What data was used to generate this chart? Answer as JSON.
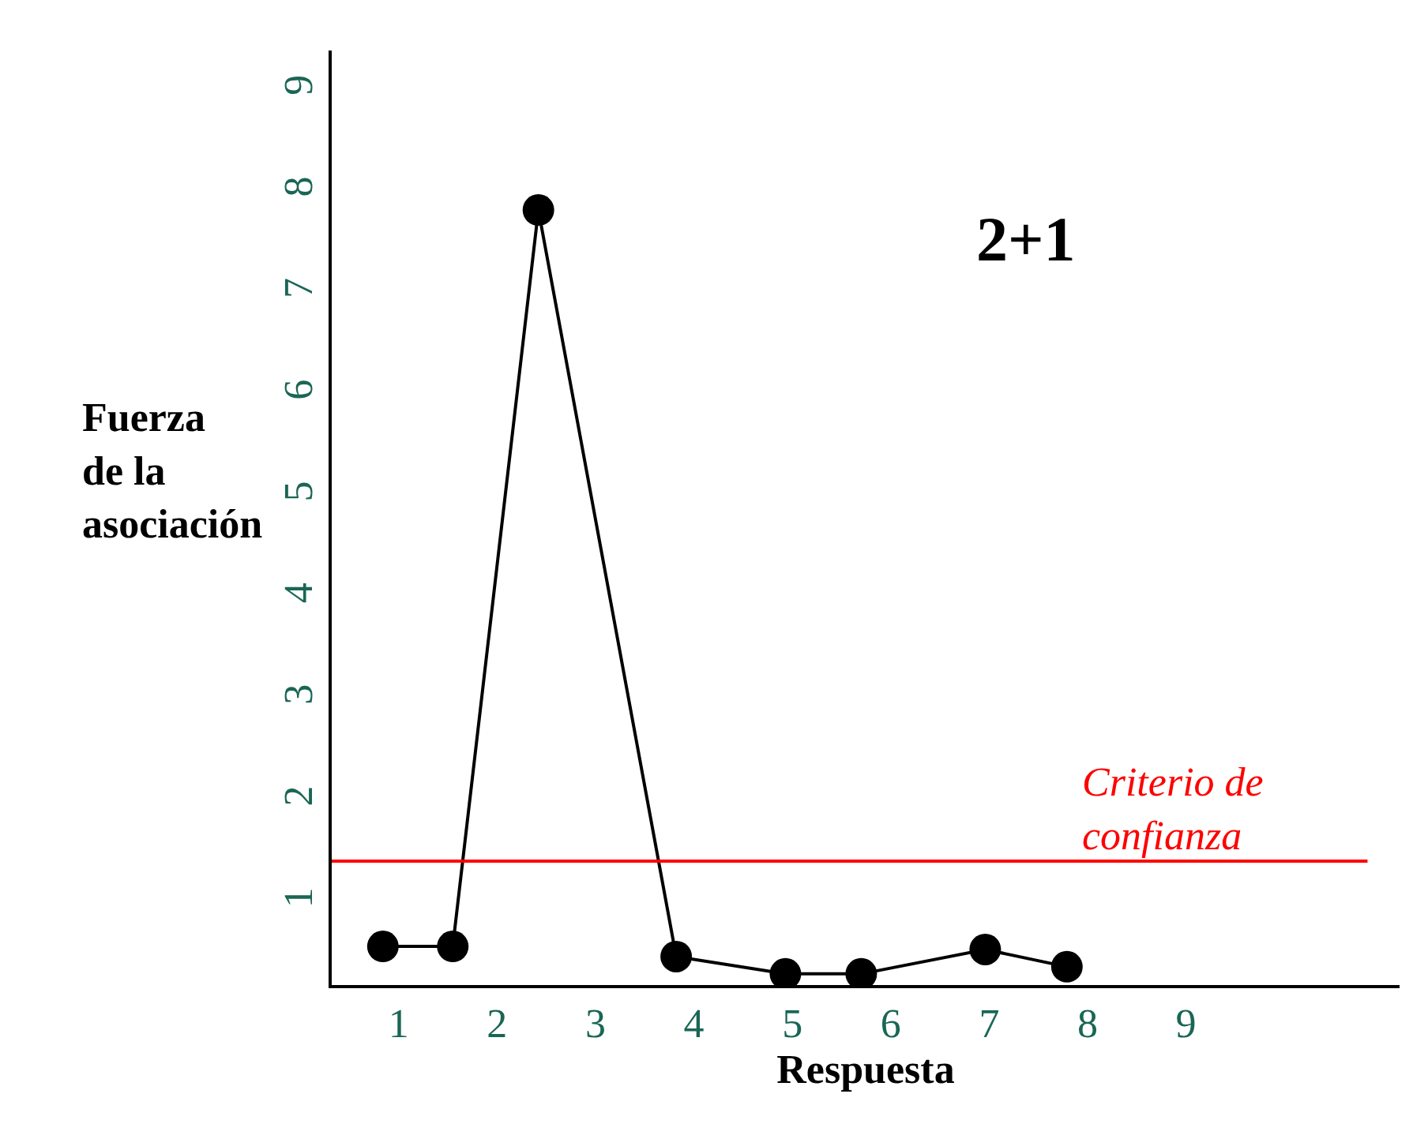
{
  "chart_data": {
    "type": "line",
    "xlabel": "Respuesta",
    "ylabel": "Fuerza\nde la\nasociación",
    "x": [
      0.84,
      1.55,
      2.42,
      3.82,
      4.93,
      5.7,
      6.96,
      7.79
    ],
    "series": [
      {
        "color": "#000000",
        "values": [
          0.58,
          0.58,
          7.83,
          0.48,
          0.31,
          0.31,
          0.55,
          0.38
        ]
      }
    ],
    "xlim": [
      0.32,
      11.17
    ],
    "xticks": [
      1,
      2,
      3,
      4,
      5,
      6,
      7,
      8,
      9
    ],
    "ylim": [
      0.2,
      9.4
    ],
    "yticks": [
      1,
      2,
      3,
      4,
      5,
      6,
      7,
      8,
      9
    ],
    "ref_lines": [
      {
        "axis": "y",
        "value": 1.42,
        "label": "Criterio de\nconfianza",
        "color": "#ff0000",
        "line_style": "solid"
      }
    ],
    "annotations": [
      "2+1"
    ],
    "marker": "circle",
    "line_style": "solid"
  }
}
